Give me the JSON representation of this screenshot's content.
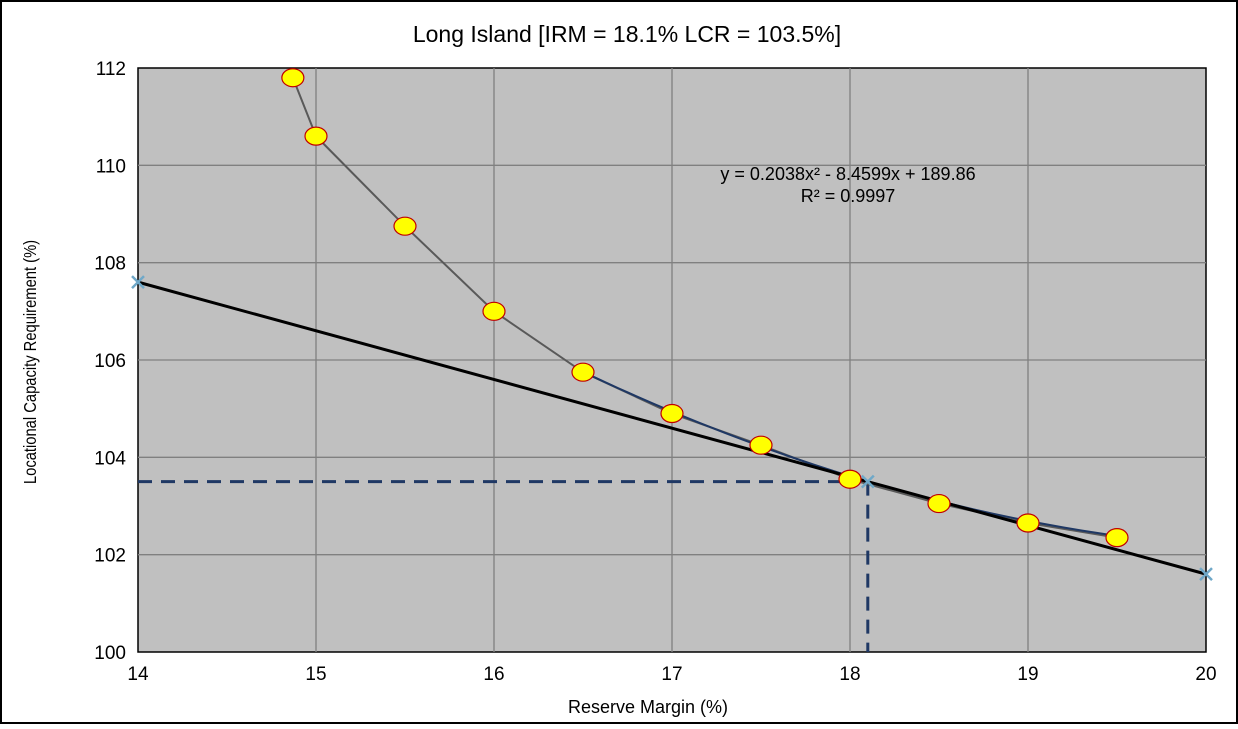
{
  "chart_data": {
    "type": "scatter",
    "title": "Long Island [IRM = 18.1% LCR = 103.5%]",
    "xlabel": "Reserve Margin (%)",
    "ylabel": "Locational Capacity Requirement (%)",
    "xlim": [
      14,
      20
    ],
    "ylim": [
      100,
      112
    ],
    "x_ticks": [
      14,
      15,
      16,
      17,
      18,
      19,
      20
    ],
    "y_ticks": [
      100,
      102,
      104,
      106,
      108,
      110,
      112
    ],
    "grid": true,
    "legend": "none",
    "series": [
      {
        "kind": "points-with-line",
        "marker": "circle",
        "color": "#ffff00",
        "points": [
          [
            14.87,
            111.8
          ],
          [
            15.0,
            110.6
          ],
          [
            15.5,
            108.75
          ],
          [
            16.0,
            107.0
          ],
          [
            16.5,
            105.75
          ],
          [
            17.0,
            104.9
          ],
          [
            17.5,
            104.25
          ],
          [
            18.0,
            103.55
          ],
          [
            18.5,
            103.05
          ],
          [
            19.0,
            102.65
          ],
          [
            19.5,
            102.35
          ]
        ]
      },
      {
        "kind": "tangent-line",
        "marker": "x",
        "color": "#000000",
        "points": [
          [
            14,
            107.6
          ],
          [
            18.1,
            103.5
          ],
          [
            20,
            101.6
          ]
        ]
      },
      {
        "kind": "trendline",
        "color": "#1f3864",
        "equation": "y = 0.2038x² - 8.4599x + 189.86",
        "r_squared": "R² = 0.9997",
        "coeffs": [
          0.2038,
          -8.4599,
          189.86
        ],
        "range": [
          16.5,
          19.5
        ]
      }
    ],
    "reference": {
      "x": 18.1,
      "y": 103.5,
      "color": "#1f3864",
      "style": "dashed"
    }
  }
}
